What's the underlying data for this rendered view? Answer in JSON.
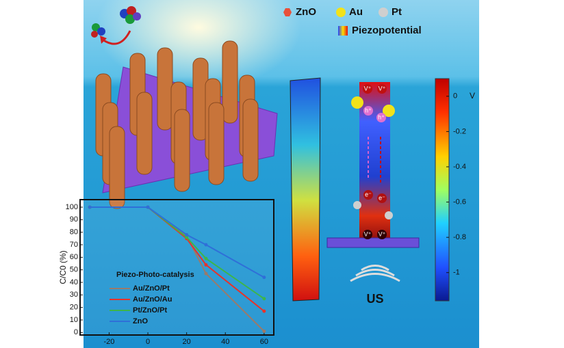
{
  "chart_data": {
    "type": "line",
    "ylabel": "C/C0 (%)",
    "annotation": "Piezo-Photo-catalysis",
    "x": [
      -30,
      0,
      20,
      30,
      60
    ],
    "series": [
      {
        "name": "Au/ZnO/Pt",
        "color": "#9a7a6a",
        "values": [
          100,
          100,
          77,
          47,
          1
        ]
      },
      {
        "name": "Au/ZnO/Au",
        "color": "#e8322a",
        "values": [
          100,
          100,
          75,
          54,
          17
        ]
      },
      {
        "name": "Pt/ZnO/Pt",
        "color": "#3db54a",
        "values": [
          100,
          100,
          76,
          59,
          27
        ]
      },
      {
        "name": "ZnO",
        "color": "#2f6fd8",
        "values": [
          100,
          100,
          78,
          70,
          44
        ]
      }
    ],
    "xlim": [
      -35,
      65
    ],
    "ylim": [
      -2,
      106
    ],
    "xticks": [
      -20,
      0,
      20,
      40,
      60
    ],
    "yticks": [
      0,
      10,
      20,
      30,
      40,
      50,
      60,
      70,
      80,
      90,
      100
    ]
  },
  "legend": {
    "items": [
      {
        "label": "ZnO",
        "color": "#e8503a"
      },
      {
        "label": "Au",
        "color": "#f2e21a"
      },
      {
        "label": "Pt",
        "color": "#cfcfcf"
      }
    ],
    "piezopotential": "Piezopotential"
  },
  "colorbar": {
    "ticks": [
      0,
      -0.2,
      -0.4,
      -0.6,
      -0.8,
      -1
    ],
    "lim": [
      0.1,
      -1.16
    ],
    "unit": "V"
  },
  "rod_labels": {
    "vacancy": "V⁺",
    "hole": "h⁺",
    "electron": "e⁻"
  },
  "ultrasound": "US"
}
